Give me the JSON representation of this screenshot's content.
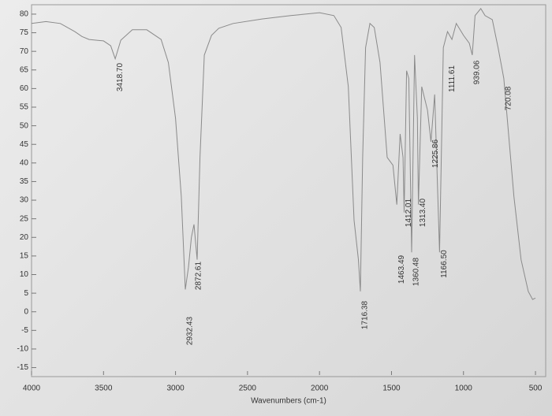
{
  "chart_data": {
    "type": "line",
    "xlabel": "Wavenumbers (cm-1)",
    "x": [
      4000,
      3900,
      3800,
      3700,
      3650,
      3600,
      3500,
      3450,
      3418.7,
      3380,
      3300,
      3200,
      3100,
      3050,
      3000,
      2960,
      2932,
      2910,
      2890,
      2872,
      2850,
      2830,
      2800,
      2750,
      2700,
      2600,
      2400,
      2200,
      2000,
      1900,
      1850,
      1800,
      1760,
      1730,
      1716,
      1700,
      1680,
      1650,
      1620,
      1580,
      1530,
      1490,
      1463,
      1440,
      1420,
      1412,
      1395,
      1380,
      1360,
      1340,
      1320,
      1313,
      1290,
      1250,
      1226,
      1200,
      1166,
      1140,
      1111,
      1080,
      1050,
      1000,
      960,
      939,
      920,
      880,
      850,
      800,
      760,
      720,
      650,
      600,
      550,
      520,
      500
    ],
    "values": [
      77.5,
      78,
      77.5,
      75.3,
      74,
      73.2,
      72.8,
      71.5,
      68,
      73,
      75.8,
      75.8,
      73.2,
      67,
      52,
      31,
      6,
      12,
      20,
      23.5,
      14,
      41.5,
      69,
      74.3,
      76.2,
      77.5,
      78.7,
      79.6,
      80.4,
      79.6,
      76.4,
      60.5,
      24.6,
      14,
      5.5,
      41.5,
      71,
      77.5,
      76.4,
      67,
      41.5,
      39.4,
      28.8,
      47.8,
      41.5,
      26.7,
      64.8,
      62.7,
      16,
      69,
      52,
      28.8,
      60.5,
      54.2,
      45.7,
      58.4,
      16,
      71,
      75.3,
      73.2,
      77.5,
      74.3,
      72.2,
      69,
      79.6,
      81.5,
      79.6,
      78.5,
      71,
      62.7,
      31,
      14,
      5.5,
      3.3,
      3.7
    ],
    "color": "#8a8a8a",
    "xlim": [
      4000,
      440
    ],
    "ylim": [
      -17,
      82
    ],
    "xticks": [
      4000,
      3500,
      3000,
      2500,
      2000,
      1500,
      1000,
      500
    ],
    "yticks": [
      80,
      75,
      70,
      65,
      60,
      55,
      50,
      45,
      40,
      35,
      30,
      25,
      20,
      15,
      10,
      5,
      0,
      -5,
      -10,
      -15
    ],
    "peaks": [
      {
        "x": 3418.7,
        "label": "3418.70"
      },
      {
        "x": 2932.43,
        "label": "2932.43"
      },
      {
        "x": 2872.61,
        "label": "2872.61"
      },
      {
        "x": 1716.38,
        "label": "1716.38"
      },
      {
        "x": 1463.49,
        "label": "1463.49"
      },
      {
        "x": 1412.01,
        "label": "1412.01"
      },
      {
        "x": 1360.48,
        "label": "1360.48"
      },
      {
        "x": 1313.4,
        "label": "1313.40"
      },
      {
        "x": 1225.86,
        "label": "1225.86"
      },
      {
        "x": 1166.5,
        "label": "1166.50"
      },
      {
        "x": 1111.61,
        "label": "1111.61"
      },
      {
        "x": 939.06,
        "label": "939.06"
      },
      {
        "x": 720.08,
        "label": "720.08"
      }
    ]
  }
}
